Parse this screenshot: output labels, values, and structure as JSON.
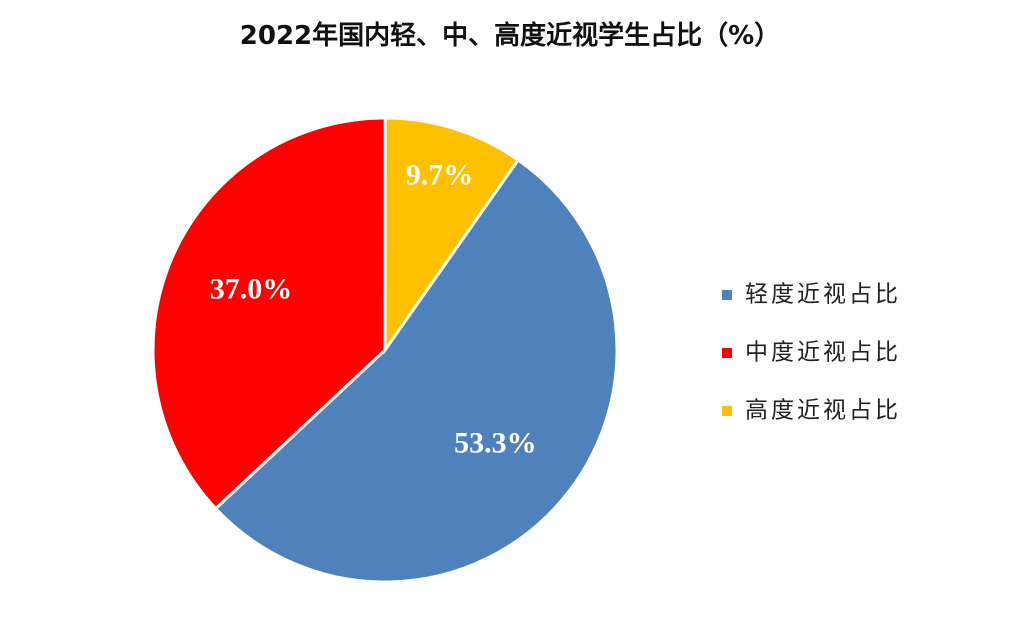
{
  "chart_data": {
    "type": "pie",
    "title": "2022年国内轻、中、高度近视学生占比（%）",
    "categories": [
      "轻度近视占比",
      "中度近视占比",
      "高度近视占比"
    ],
    "values": [
      53.3,
      37.0,
      9.7
    ],
    "value_labels": [
      "53.3%",
      "37.0%",
      "9.7%"
    ],
    "colors": [
      "#4f81bd",
      "#ff0000",
      "#ffc000"
    ],
    "legend": "right"
  }
}
